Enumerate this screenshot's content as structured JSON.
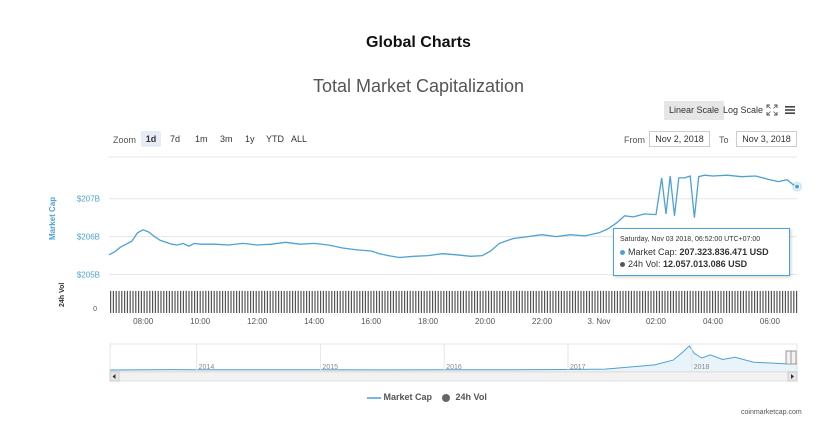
{
  "header": {
    "title": "Global Charts"
  },
  "chart_title": "Total Market Capitalization",
  "scale": {
    "linear_label": "Linear Scale",
    "log_label": "Log Scale",
    "active": "linear"
  },
  "icons": {
    "fullscreen": "expand-icon",
    "menu": "hamburger-menu-icon"
  },
  "zoom": {
    "label": "Zoom",
    "options": [
      "1d",
      "7d",
      "1m",
      "3m",
      "1y",
      "YTD",
      "ALL"
    ],
    "selected": "1d"
  },
  "range": {
    "from_label": "From",
    "from_value": "Nov 2, 2018",
    "to_label": "To",
    "to_value": "Nov 3, 2018"
  },
  "tooltip": {
    "timestamp": "Saturday, Nov 03 2018, 06:52:00 UTC+07:00",
    "market_cap_label": "Market Cap:",
    "market_cap_value": "207.323.836.471 USD",
    "vol_label": "24h Vol:",
    "vol_value": "12.057.013.086 USD"
  },
  "legend": {
    "market_cap": "Market Cap",
    "vol": "24h Vol"
  },
  "credit": "coinmarketcap.com",
  "colors": {
    "series": "#4da1d3",
    "volume": "#555555",
    "navigator": "#4da1d3"
  },
  "chart_data": [
    {
      "type": "line",
      "title": "Total Market Capitalization",
      "ylabel": "Market Cap",
      "y_ticks": [
        "$205B",
        "$206B",
        "$207B"
      ],
      "y_tick_values": [
        205,
        206,
        207
      ],
      "x_ticks": [
        "08:00",
        "10:00",
        "12:00",
        "14:00",
        "16:00",
        "18:00",
        "20:00",
        "22:00",
        "3. Nov",
        "02:00",
        "04:00",
        "06:00"
      ],
      "x_tick_hours": [
        8,
        10,
        12,
        14,
        16,
        18,
        20,
        22,
        24,
        26,
        28,
        30
      ],
      "x_range_hours": [
        6.8,
        30.95
      ],
      "ylim": [
        204.75,
        208.1
      ],
      "series": [
        {
          "name": "Market Cap",
          "x_hours": [
            6.8,
            7.0,
            7.2,
            7.4,
            7.6,
            7.8,
            8.0,
            8.2,
            8.4,
            8.6,
            8.8,
            9.0,
            9.2,
            9.4,
            9.6,
            9.8,
            10.0,
            10.5,
            11.0,
            11.5,
            12.0,
            12.5,
            13.0,
            13.5,
            14.0,
            14.5,
            15.0,
            15.5,
            16.0,
            16.3,
            16.6,
            17.0,
            17.5,
            18.0,
            18.5,
            19.0,
            19.5,
            19.9,
            20.2,
            20.5,
            20.8,
            21.0,
            21.5,
            22.0,
            22.5,
            23.0,
            23.5,
            24.0,
            24.3,
            24.6,
            24.9,
            25.2,
            25.6,
            26.0,
            26.2,
            26.35,
            26.5,
            26.65,
            26.8,
            27.0,
            27.2,
            27.35,
            27.5,
            27.7,
            28.0,
            28.5,
            29.0,
            29.5,
            30.0,
            30.3,
            30.6,
            30.8,
            30.95
          ],
          "values": [
            205.52,
            205.6,
            205.72,
            205.8,
            205.88,
            206.1,
            206.18,
            206.12,
            206.0,
            205.9,
            205.85,
            205.8,
            205.78,
            205.82,
            205.75,
            205.82,
            205.8,
            205.8,
            205.78,
            205.82,
            205.78,
            205.8,
            205.85,
            205.8,
            205.82,
            205.78,
            205.7,
            205.65,
            205.62,
            205.55,
            205.5,
            205.45,
            205.48,
            205.5,
            205.55,
            205.52,
            205.48,
            205.5,
            205.62,
            205.82,
            205.9,
            205.95,
            206.0,
            206.05,
            206.0,
            206.05,
            206.02,
            206.1,
            206.2,
            206.35,
            206.55,
            206.52,
            206.6,
            206.58,
            207.55,
            206.6,
            207.6,
            206.55,
            207.55,
            207.55,
            207.6,
            206.5,
            207.58,
            207.62,
            207.6,
            207.62,
            207.58,
            207.6,
            207.5,
            207.45,
            207.5,
            207.38,
            207.32
          ]
        }
      ]
    },
    {
      "type": "bar",
      "ylabel": "24h Vol",
      "y_ticks": [
        "0"
      ],
      "series": [
        {
          "name": "24h Vol",
          "level": 0.92
        }
      ]
    },
    {
      "type": "area",
      "x_ticks": [
        "2014",
        "2015",
        "2016",
        "2017",
        "2018"
      ],
      "x_range_years": [
        2013.3,
        2018.85
      ],
      "ylim": [
        0,
        830
      ],
      "series": [
        {
          "name": "Market Cap",
          "x_years": [
            2013.3,
            2013.8,
            2014.0,
            2014.5,
            2015.0,
            2015.5,
            2016.0,
            2016.5,
            2017.0,
            2017.3,
            2017.5,
            2017.7,
            2017.85,
            2017.93,
            2017.98,
            2018.02,
            2018.08,
            2018.15,
            2018.25,
            2018.35,
            2018.5,
            2018.65,
            2018.75,
            2018.85
          ],
          "values": [
            1,
            12,
            11,
            6,
            5,
            4,
            7,
            11,
            18,
            30,
            100,
            170,
            330,
            600,
            800,
            550,
            400,
            500,
            350,
            420,
            260,
            230,
            210,
            207
          ]
        }
      ]
    }
  ]
}
